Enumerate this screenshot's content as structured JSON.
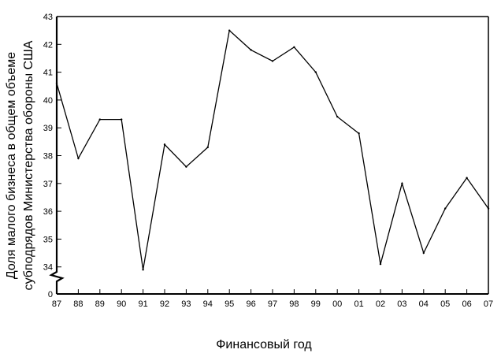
{
  "chart_data": {
    "type": "line",
    "title": "",
    "xlabel": "Финансовый год",
    "ylabel_lines": [
      "Доля малого бизнеса в общем объеме",
      "субподрядов Министерства обороны США"
    ],
    "categories": [
      "87",
      "88",
      "89",
      "90",
      "91",
      "92",
      "93",
      "94",
      "95",
      "96",
      "97",
      "98",
      "99",
      "00",
      "01",
      "02",
      "03",
      "04",
      "05",
      "06",
      "07"
    ],
    "series": [
      {
        "values": [
          40.6,
          37.9,
          39.3,
          39.3,
          33.9,
          38.4,
          37.6,
          38.3,
          42.5,
          41.8,
          41.4,
          41.9,
          41.0,
          39.4,
          38.8,
          34.1,
          37.0,
          34.5,
          36.1,
          37.2,
          36.1
        ]
      }
    ],
    "yticks": [
      43,
      42,
      41,
      40,
      39,
      38,
      37,
      36,
      35,
      34
    ],
    "y_baseline_label": "0",
    "ylim": [
      33.5,
      43
    ],
    "axis_break": true,
    "grid": false,
    "line_color": "#000000"
  }
}
